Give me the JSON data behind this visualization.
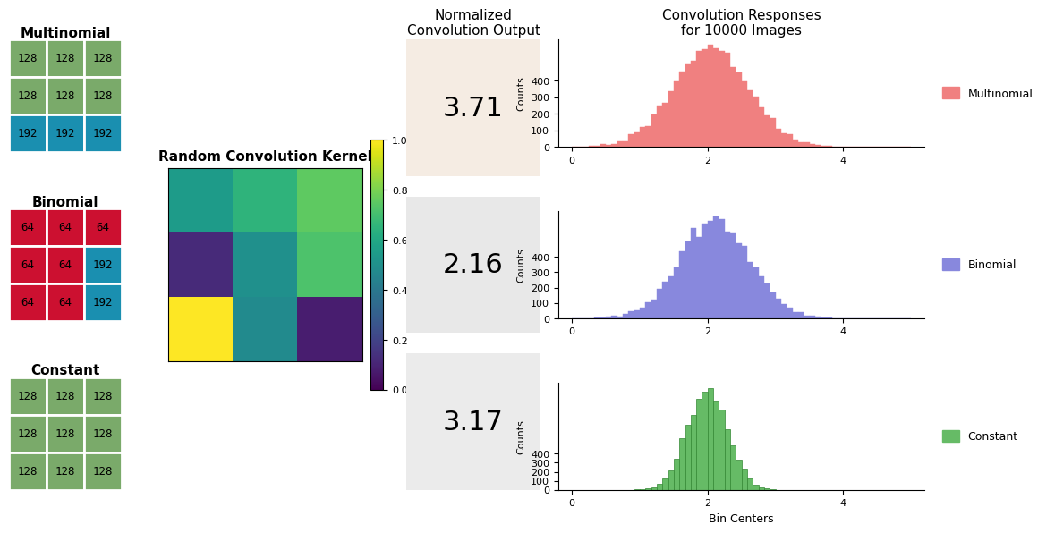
{
  "title_kernel": "Random Convolution Kernel",
  "title_hist": "Convolution Responses\nfor 10000 Images",
  "title_norm": "Normalized\nConvolution Output",
  "xlabel_hist": "Bin Centers",
  "ylabel_hist": "Counts",
  "conv_outputs": [
    "3.71",
    "2.16",
    "3.17"
  ],
  "conv_bg_colors": [
    "#f5ece3",
    "#e8e8e8",
    "#ebebeb"
  ],
  "hist_colors": [
    "#f08080",
    "#8888dd",
    "#66bb66"
  ],
  "hist_edge_colors": [
    "#f08080",
    "#8888dd",
    "#55aa55"
  ],
  "legend_labels": [
    "Multinomial",
    "Binomial",
    "Constant"
  ],
  "multinomial_matrix": [
    [
      128,
      128,
      128
    ],
    [
      128,
      128,
      128
    ],
    [
      192,
      192,
      192
    ]
  ],
  "multinomial_colors": [
    [
      "#7aaa6a",
      "#7aaa6a",
      "#7aaa6a"
    ],
    [
      "#7aaa6a",
      "#7aaa6a",
      "#7aaa6a"
    ],
    [
      "#1a8fb0",
      "#1a8fb0",
      "#1a8fb0"
    ]
  ],
  "binomial_matrix": [
    [
      64,
      64,
      64
    ],
    [
      64,
      64,
      192
    ],
    [
      64,
      64,
      192
    ]
  ],
  "binomial_colors": [
    [
      "#cc1030",
      "#cc1030",
      "#cc1030"
    ],
    [
      "#cc1030",
      "#cc1030",
      "#1a8fb0"
    ],
    [
      "#cc1030",
      "#cc1030",
      "#1a8fb0"
    ]
  ],
  "constant_matrix": [
    [
      128,
      128,
      128
    ],
    [
      128,
      128,
      128
    ],
    [
      128,
      128,
      128
    ]
  ],
  "constant_colors": [
    [
      "#7aaa6a",
      "#7aaa6a",
      "#7aaa6a"
    ],
    [
      "#7aaa6a",
      "#7aaa6a",
      "#7aaa6a"
    ],
    [
      "#7aaa6a",
      "#7aaa6a",
      "#7aaa6a"
    ]
  ],
  "kernel_values": [
    [
      0.55,
      0.65,
      0.75
    ],
    [
      0.12,
      0.5,
      0.72
    ],
    [
      1.0,
      0.48,
      0.08
    ]
  ],
  "hist_n": 10000,
  "hist_xlim": [
    0,
    5
  ],
  "background_color": "#ffffff",
  "matrix_fontsize": 9,
  "title_fontsize": 11,
  "hist_bins": 60,
  "hist_yticks": [
    0,
    100,
    200,
    300,
    400
  ],
  "hist_xticks": [
    0,
    2,
    4
  ]
}
